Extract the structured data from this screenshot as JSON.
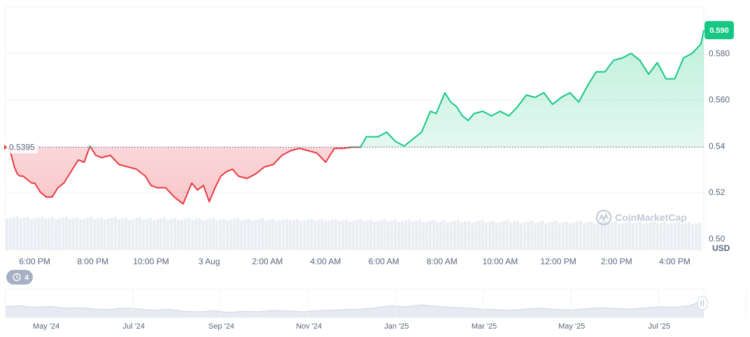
{
  "chart_data": {
    "type": "line",
    "currency_label": "USD",
    "baseline_value": 0.5395,
    "baseline_label": "0.5395",
    "current_value": 0.59,
    "current_label": "0.590",
    "colors": {
      "up": "#16c784",
      "down": "#ea3943",
      "up_fill": "#16c784",
      "down_fill": "#ea3943",
      "grid": "#eff2f5",
      "baseline": "#58667e",
      "volume": "#eaedf2",
      "navigator_fill": "#e7eaf0"
    },
    "y_axis": {
      "min": 0.495,
      "max": 0.6,
      "ticks": [
        0.5,
        0.52,
        0.54,
        0.56,
        0.58
      ],
      "tick_labels": [
        "0.50",
        "0.52",
        "0.54",
        "0.560",
        "0.580"
      ]
    },
    "x_axis": {
      "tick_labels": [
        "6:00 PM",
        "8:00 PM",
        "10:00 PM",
        "3 Aug",
        "2:00 AM",
        "4:00 AM",
        "6:00 AM",
        "8:00 AM",
        "10:00 AM",
        "12:00 PM",
        "2:00 PM",
        "4:00 PM"
      ],
      "tick_hours": [
        1,
        3,
        5,
        7,
        9,
        11,
        13,
        15,
        17,
        19,
        21,
        23
      ],
      "range_hours": [
        0,
        24
      ]
    },
    "series": [
      {
        "t": [
          0,
          0.1,
          0.2,
          0.3,
          0.4,
          0.5,
          0.6,
          0.7,
          0.8,
          0.9,
          1.0,
          1.2,
          1.4,
          1.6,
          1.8,
          2.0,
          2.3,
          2.5,
          2.7,
          2.9,
          3.1,
          3.3,
          3.6,
          3.9,
          4.2,
          4.5,
          4.8,
          5.0,
          5.2,
          5.5,
          5.8,
          6.1,
          6.4,
          6.6,
          6.8,
          7.0,
          7.2,
          7.4,
          7.6,
          7.8,
          8.0,
          8.3,
          8.6,
          8.9,
          9.2,
          9.5,
          9.8,
          10.1,
          10.4,
          10.7,
          11.0,
          11.3,
          11.6,
          11.9,
          12.2,
          12.4,
          12.8,
          13.1,
          13.4,
          13.7,
          14.0,
          14.3,
          14.6,
          14.8,
          15.1,
          15.3,
          15.5,
          15.7,
          15.9,
          16.1,
          16.4,
          16.7,
          17.0,
          17.3,
          17.6,
          17.9,
          18.2,
          18.5,
          18.8,
          19.1,
          19.4,
          19.7,
          20.0,
          20.3,
          20.6,
          20.9,
          21.2,
          21.5,
          21.8,
          22.1,
          22.4,
          22.7,
          23.0,
          23.3,
          23.6,
          23.9,
          24.0
        ],
        "values": [
          0.5395,
          0.539,
          0.536,
          0.531,
          0.528,
          0.527,
          0.527,
          0.526,
          0.525,
          0.524,
          0.524,
          0.52,
          0.518,
          0.518,
          0.522,
          0.524,
          0.53,
          0.534,
          0.533,
          0.54,
          0.536,
          0.535,
          0.536,
          0.532,
          0.531,
          0.53,
          0.527,
          0.523,
          0.522,
          0.522,
          0.518,
          0.515,
          0.524,
          0.521,
          0.523,
          0.516,
          0.522,
          0.527,
          0.529,
          0.53,
          0.527,
          0.526,
          0.528,
          0.531,
          0.532,
          0.536,
          0.538,
          0.539,
          0.538,
          0.537,
          0.533,
          0.539,
          0.539,
          0.5395,
          0.5395,
          0.544,
          0.544,
          0.546,
          0.542,
          0.54,
          0.543,
          0.546,
          0.555,
          0.554,
          0.563,
          0.559,
          0.557,
          0.553,
          0.551,
          0.554,
          0.555,
          0.553,
          0.555,
          0.553,
          0.557,
          0.562,
          0.561,
          0.563,
          0.558,
          0.561,
          0.563,
          0.559,
          0.566,
          0.572,
          0.572,
          0.577,
          0.578,
          0.58,
          0.577,
          0.571,
          0.576,
          0.569,
          0.569,
          0.578,
          0.58,
          0.584,
          0.59
        ]
      }
    ],
    "navigator": {
      "tick_labels": [
        "May '24",
        "Jul '24",
        "Sep '24",
        "Nov '24",
        "Jan '25",
        "Mar '25",
        "May '25",
        "Jul '25"
      ],
      "values": [
        0.38,
        0.42,
        0.36,
        0.4,
        0.33,
        0.35,
        0.3,
        0.28,
        0.34,
        0.3,
        0.26,
        0.29,
        0.22,
        0.2,
        0.24,
        0.18,
        0.22,
        0.2,
        0.25,
        0.23,
        0.2,
        0.24,
        0.26,
        0.28,
        0.3,
        0.35,
        0.42,
        0.38,
        0.45,
        0.4,
        0.36,
        0.34,
        0.3,
        0.28,
        0.26,
        0.3,
        0.33,
        0.29,
        0.27,
        0.31,
        0.35,
        0.32,
        0.3,
        0.34,
        0.38,
        0.36,
        0.42,
        0.6
      ]
    },
    "history_badge": "4",
    "watermark": "CoinMarketCap"
  }
}
